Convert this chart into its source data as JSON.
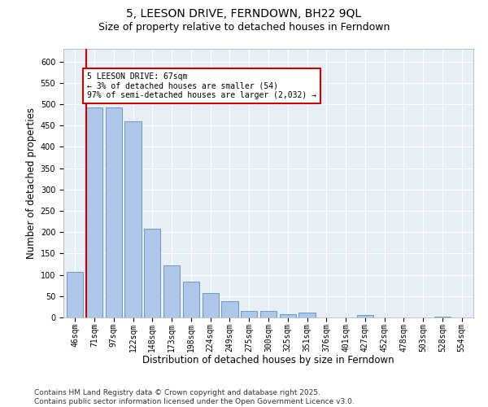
{
  "title1": "5, LEESON DRIVE, FERNDOWN, BH22 9QL",
  "title2": "Size of property relative to detached houses in Ferndown",
  "xlabel": "Distribution of detached houses by size in Ferndown",
  "ylabel": "Number of detached properties",
  "categories": [
    "46sqm",
    "71sqm",
    "97sqm",
    "122sqm",
    "148sqm",
    "173sqm",
    "198sqm",
    "224sqm",
    "249sqm",
    "275sqm",
    "300sqm",
    "325sqm",
    "351sqm",
    "376sqm",
    "401sqm",
    "427sqm",
    "452sqm",
    "478sqm",
    "503sqm",
    "528sqm",
    "554sqm"
  ],
  "values": [
    107,
    492,
    492,
    460,
    208,
    122,
    84,
    58,
    39,
    15,
    15,
    8,
    12,
    0,
    0,
    5,
    0,
    0,
    0,
    2,
    0
  ],
  "bar_color": "#aec6e8",
  "bar_edge_color": "#5a8fc0",
  "marker_label_line1": "5 LEESON DRIVE: 67sqm",
  "marker_label_line2": "← 3% of detached houses are smaller (54)",
  "marker_label_line3": "97% of semi-detached houses are larger (2,032) →",
  "marker_line_color": "#cc0000",
  "annotation_box_edge": "#cc0000",
  "ylim": [
    0,
    630
  ],
  "yticks": [
    0,
    50,
    100,
    150,
    200,
    250,
    300,
    350,
    400,
    450,
    500,
    550,
    600
  ],
  "background_color": "#e8eef5",
  "grid_color": "#ffffff",
  "footer": "Contains HM Land Registry data © Crown copyright and database right 2025.\nContains public sector information licensed under the Open Government Licence v3.0.",
  "title_fontsize": 10,
  "subtitle_fontsize": 9,
  "axis_label_fontsize": 8.5,
  "tick_fontsize": 7,
  "footer_fontsize": 6.5
}
